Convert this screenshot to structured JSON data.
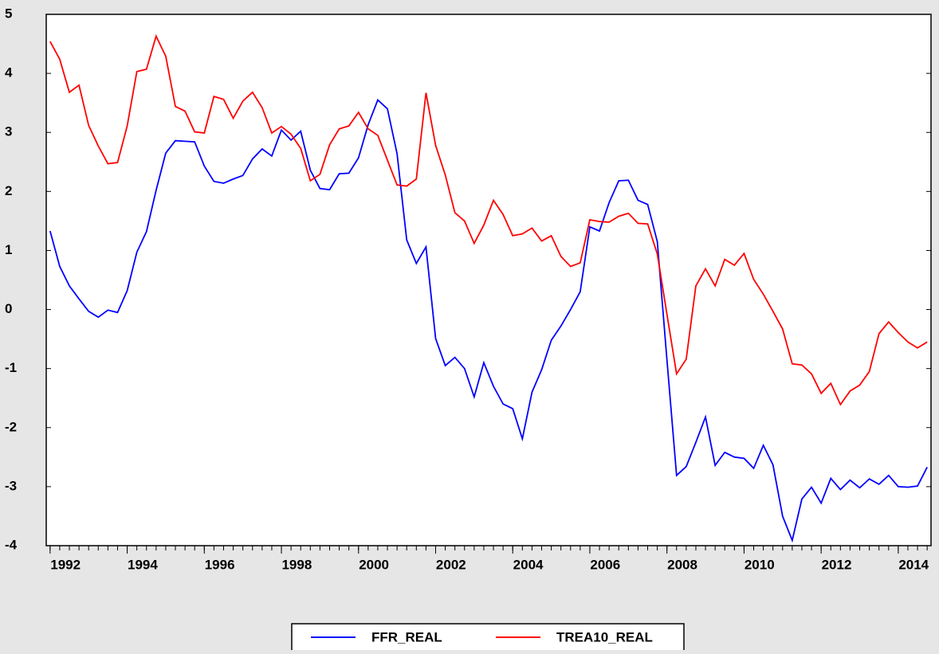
{
  "chart_data": {
    "type": "line",
    "x": [
      1992,
      1992.25,
      1992.5,
      1992.75,
      1993,
      1993.25,
      1993.5,
      1993.75,
      1994,
      1994.25,
      1994.5,
      1994.75,
      1995,
      1995.25,
      1995.5,
      1995.75,
      1996,
      1996.25,
      1996.5,
      1996.75,
      1997,
      1997.25,
      1997.5,
      1997.75,
      1998,
      1998.25,
      1998.5,
      1998.75,
      1999,
      1999.25,
      1999.5,
      1999.75,
      2000,
      2000.25,
      2000.5,
      2000.75,
      2001,
      2001.25,
      2001.5,
      2001.75,
      2002,
      2002.25,
      2002.5,
      2002.75,
      2003,
      2003.25,
      2003.5,
      2003.75,
      2004,
      2004.25,
      2004.5,
      2004.75,
      2005,
      2005.25,
      2005.5,
      2005.75,
      2006,
      2006.25,
      2006.5,
      2006.75,
      2007,
      2007.25,
      2007.5,
      2007.75,
      2008,
      2008.25,
      2008.5,
      2008.75,
      2009,
      2009.25,
      2009.5,
      2009.75,
      2010,
      2010.25,
      2010.5,
      2010.75,
      2011,
      2011.25,
      2011.5,
      2011.75,
      2012,
      2012.25,
      2012.5,
      2012.75,
      2013,
      2013.25,
      2013.5,
      2013.75,
      2014,
      2014.25,
      2014.5,
      2014.75
    ],
    "series": [
      {
        "name": "FFR_REAL",
        "color": "#0000ff",
        "values": [
          1.33,
          0.73,
          0.4,
          0.18,
          -0.03,
          -0.13,
          -0.01,
          -0.05,
          0.32,
          0.97,
          1.32,
          2.02,
          2.65,
          2.86,
          2.85,
          2.84,
          2.43,
          2.17,
          2.14,
          2.21,
          2.27,
          2.55,
          2.72,
          2.6,
          3.04,
          2.87,
          3.02,
          2.36,
          2.05,
          2.03,
          2.3,
          2.31,
          2.57,
          3.13,
          3.55,
          3.4,
          2.64,
          1.18,
          0.78,
          1.06,
          -0.49,
          -0.95,
          -0.81,
          -1.0,
          -1.48,
          -0.9,
          -1.3,
          -1.6,
          -1.68,
          -2.19,
          -1.4,
          -1.02,
          -0.52,
          -0.28,
          0.0,
          0.3,
          1.4,
          1.33,
          1.81,
          2.18,
          2.19,
          1.85,
          1.78,
          1.15,
          -0.85,
          -2.81,
          -2.66,
          -2.25,
          -1.82,
          -2.64,
          -2.42,
          -2.5,
          -2.52,
          -2.69,
          -2.3,
          -2.63,
          -3.5,
          -3.91,
          -3.21,
          -3.01,
          -3.28,
          -2.86,
          -3.05,
          -2.89,
          -3.02,
          -2.87,
          -2.96,
          -2.81,
          -3.0,
          -3.01,
          -2.99,
          -2.67
        ]
      },
      {
        "name": "TREA10_REAL",
        "color": "#ff0000",
        "values": [
          4.54,
          4.24,
          3.68,
          3.8,
          3.12,
          2.77,
          2.47,
          2.49,
          3.11,
          4.03,
          4.07,
          4.63,
          4.29,
          3.44,
          3.36,
          3.01,
          2.99,
          3.61,
          3.56,
          3.24,
          3.53,
          3.68,
          3.42,
          2.99,
          3.1,
          2.97,
          2.73,
          2.18,
          2.29,
          2.79,
          3.06,
          3.11,
          3.34,
          3.06,
          2.95,
          2.53,
          2.11,
          2.09,
          2.21,
          3.67,
          2.78,
          2.28,
          1.64,
          1.5,
          1.12,
          1.43,
          1.85,
          1.61,
          1.25,
          1.28,
          1.38,
          1.16,
          1.25,
          0.9,
          0.73,
          0.79,
          1.52,
          1.49,
          1.48,
          1.58,
          1.63,
          1.46,
          1.45,
          0.94,
          -0.08,
          -1.09,
          -0.84,
          0.4,
          0.69,
          0.4,
          0.85,
          0.75,
          0.95,
          0.51,
          0.26,
          -0.03,
          -0.33,
          -0.92,
          -0.94,
          -1.09,
          -1.42,
          -1.25,
          -1.61,
          -1.38,
          -1.28,
          -1.05,
          -0.41,
          -0.21,
          -0.39,
          -0.55,
          -0.65,
          -0.55
        ]
      }
    ],
    "xlim": [
      1991.9,
      2014.85
    ],
    "xticks": [
      1992,
      1994,
      1996,
      1998,
      2000,
      2002,
      2004,
      2006,
      2008,
      2010,
      2012,
      2014
    ],
    "ylim": [
      -4,
      5
    ],
    "yticks": [
      -4,
      -3,
      -2,
      -1,
      0,
      1,
      2,
      3,
      4,
      5
    ],
    "grid": false,
    "legend": "bottom"
  }
}
